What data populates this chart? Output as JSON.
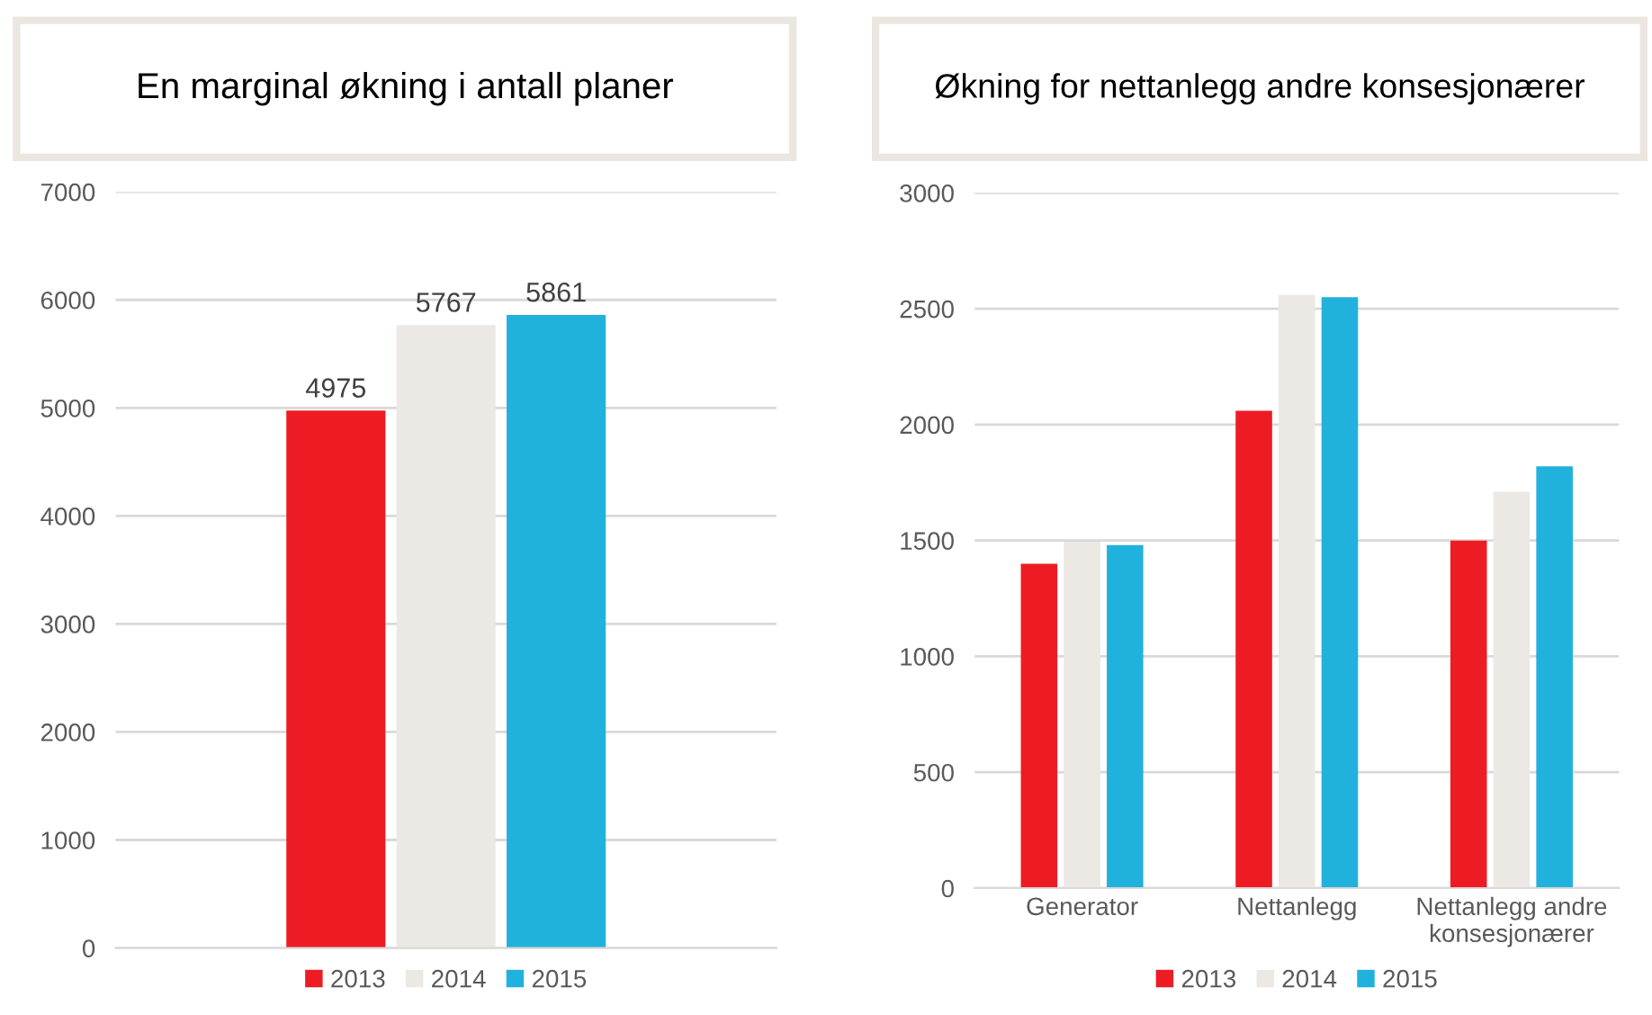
{
  "chart_data": [
    {
      "type": "bar",
      "title": "En marginal økning i antall planer",
      "categories": [
        null
      ],
      "series": [
        {
          "name": "2013",
          "color": "#ed1c24",
          "values": [
            4975
          ]
        },
        {
          "name": "2014",
          "color": "#ece8e4",
          "values": [
            5767
          ]
        },
        {
          "name": "2015",
          "color": "#21b1dd",
          "values": [
            5861
          ]
        }
      ],
      "ylim": [
        0,
        7000
      ],
      "yticks": [
        0,
        1000,
        2000,
        3000,
        4000,
        5000,
        6000,
        7000
      ],
      "grid": "y",
      "legend": "bottom",
      "data_labels": true
    },
    {
      "type": "bar",
      "title": "Økning for nettanlegg andre konsesjonærer",
      "categories": [
        "Generator",
        "Nettanlegg",
        "Nettanlegg andre\nkonsesjonærer"
      ],
      "series": [
        {
          "name": "2013",
          "color": "#ed1c24",
          "values": [
            1400,
            2060,
            1500
          ]
        },
        {
          "name": "2014",
          "color": "#ece8e4",
          "values": [
            1495,
            2560,
            1710
          ]
        },
        {
          "name": "2015",
          "color": "#21b1dd",
          "values": [
            1480,
            2550,
            1820
          ]
        }
      ],
      "ylim": [
        0,
        3000
      ],
      "yticks": [
        0,
        500,
        1000,
        1500,
        2000,
        2500,
        3000
      ],
      "grid": "y",
      "legend": "bottom"
    }
  ]
}
